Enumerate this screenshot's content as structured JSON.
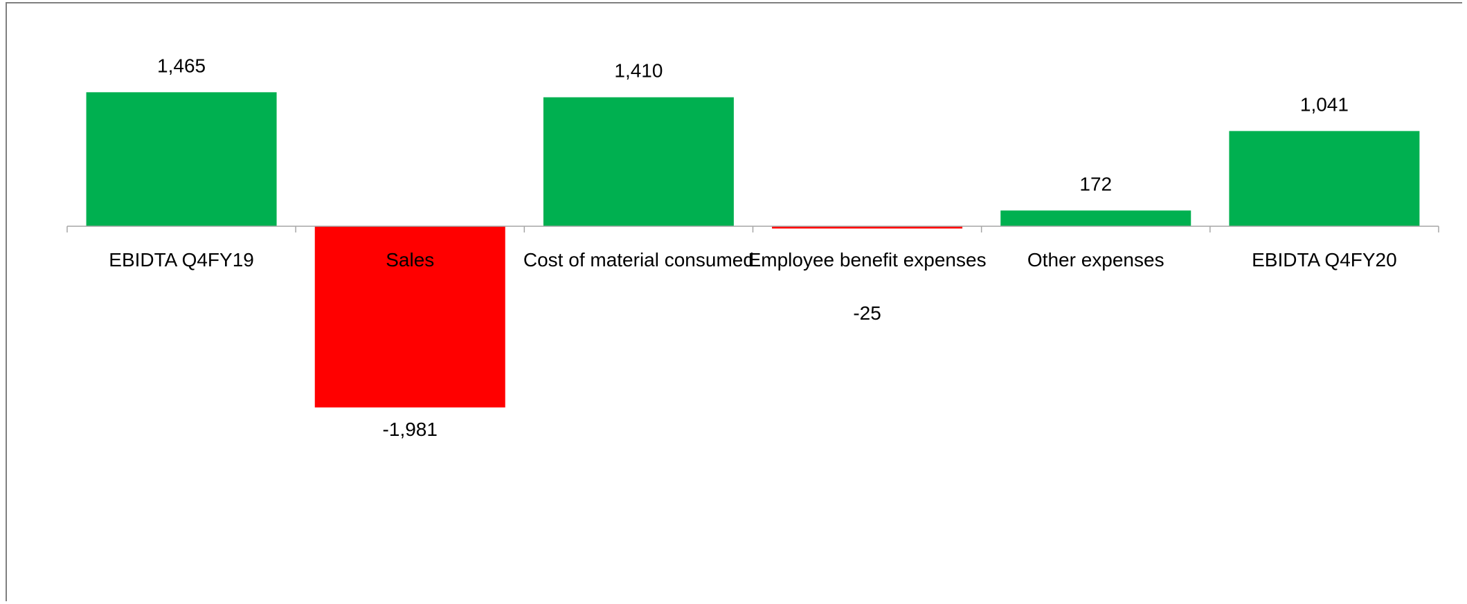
{
  "chart_data": {
    "type": "bar",
    "title": "",
    "xlabel": "",
    "ylabel": "",
    "categories": [
      "EBIDTA Q4FY19",
      "Sales",
      "Cost of material consumed",
      "Employee benefit expenses",
      "Other expenses",
      "EBIDTA Q4FY20"
    ],
    "values": [
      1465,
      -1981,
      1410,
      -25,
      172,
      1041
    ],
    "data_labels": [
      "1,465",
      "-1,981",
      "1,410",
      "-25",
      "172",
      "1,041"
    ],
    "ylim": [
      -4300,
      2450
    ],
    "grid": false,
    "legend": "none",
    "colors": {
      "positive": "#00b050",
      "negative": "#ff0000",
      "axis": "#a6a6a6",
      "frame": "#7f7f7f"
    }
  }
}
